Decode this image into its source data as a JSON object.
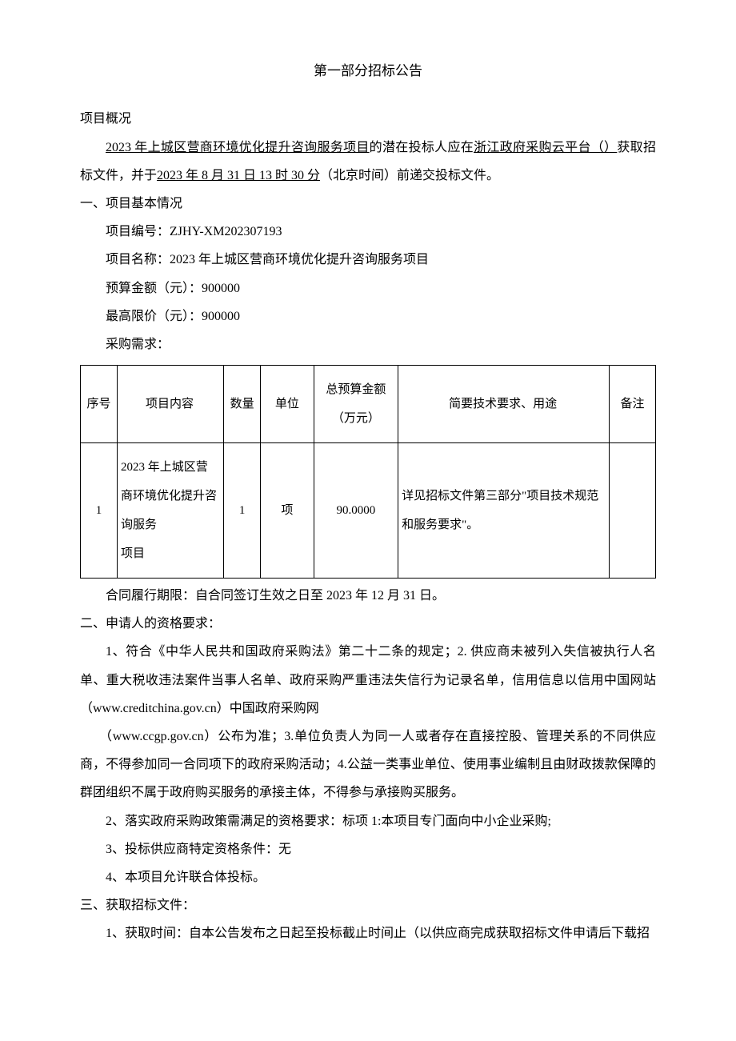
{
  "title": "第一部分招标公告",
  "overview_label": "项目概况",
  "intro_prefix": "2023 年上城区营商环境优化提升咨询服务项目",
  "intro_mid": "的潜在投标人应在",
  "intro_platform": "浙江政府采购云平台（）",
  "intro_suffix": "获取招标文件，并于",
  "intro_deadline": "2023 年 8 月 31 日 13 时 30 分",
  "intro_end": "（北京时间）前递交投标文件。",
  "section1_title": "一、项目基本情况",
  "project_no_label": "项目编号：",
  "project_no": "ZJHY-XM202307193",
  "project_name_label": "项目名称：",
  "project_name": "2023 年上城区营商环境优化提升咨询服务项目",
  "budget_label": "预算金额（元）：",
  "budget": "900000",
  "maxprice_label": "最高限价（元）：",
  "maxprice": "900000",
  "demand_label": "采购需求：",
  "table": {
    "headers": {
      "seq": "序号",
      "content": "项目内容",
      "qty": "数量",
      "unit": "单位",
      "budget": "总预算金额（万元）",
      "tech": "简要技术要求、用途",
      "note": "备注"
    },
    "row1": {
      "seq": "1",
      "content": "2023 年上城区营商环境优化提升咨询服务",
      "content2": "项目",
      "qty": "1",
      "unit": "项",
      "budget": "90.0000",
      "tech": "详见招标文件第三部分\"项目技术规范和服务要求\"。",
      "note": ""
    }
  },
  "contract_period": "合同履行期限：自合同签订生效之日至 2023 年 12 月 31 日。",
  "section2_title": "二、申请人的资格要求：",
  "req1": "1、符合《中华人民共和国政府采购法》第二十二条的规定；2. 供应商未被列入失信被执行人名单、重大税收违法案件当事人名单、政府采购严重违法失信行为记录名单，信用信息以信用中国网站（www.creditchina.gov.cn）中国政府采购网",
  "req1b": "（www.ccgp.gov.cn）公布为准；3.单位负责人为同一人或者存在直接控股、管理关系的不同供应商，不得参加同一合同项下的政府采购活动；4.公益一类事业单位、使用事业编制且由财政拨款保障的群团组织不属于政府购买服务的承接主体，不得参与承接购买服务。",
  "req2": "2、落实政府采购政策需满足的资格要求：标项 1:本项目专门面向中小企业采购;",
  "req3": "3、投标供应商特定资格条件：无",
  "req4": "4、本项目允许联合体投标。",
  "section3_title": "三、获取招标文件：",
  "obtain1": "1、获取时间：自本公告发布之日起至投标截止时间止（以供应商完成获取招标文件申请后下载招"
}
